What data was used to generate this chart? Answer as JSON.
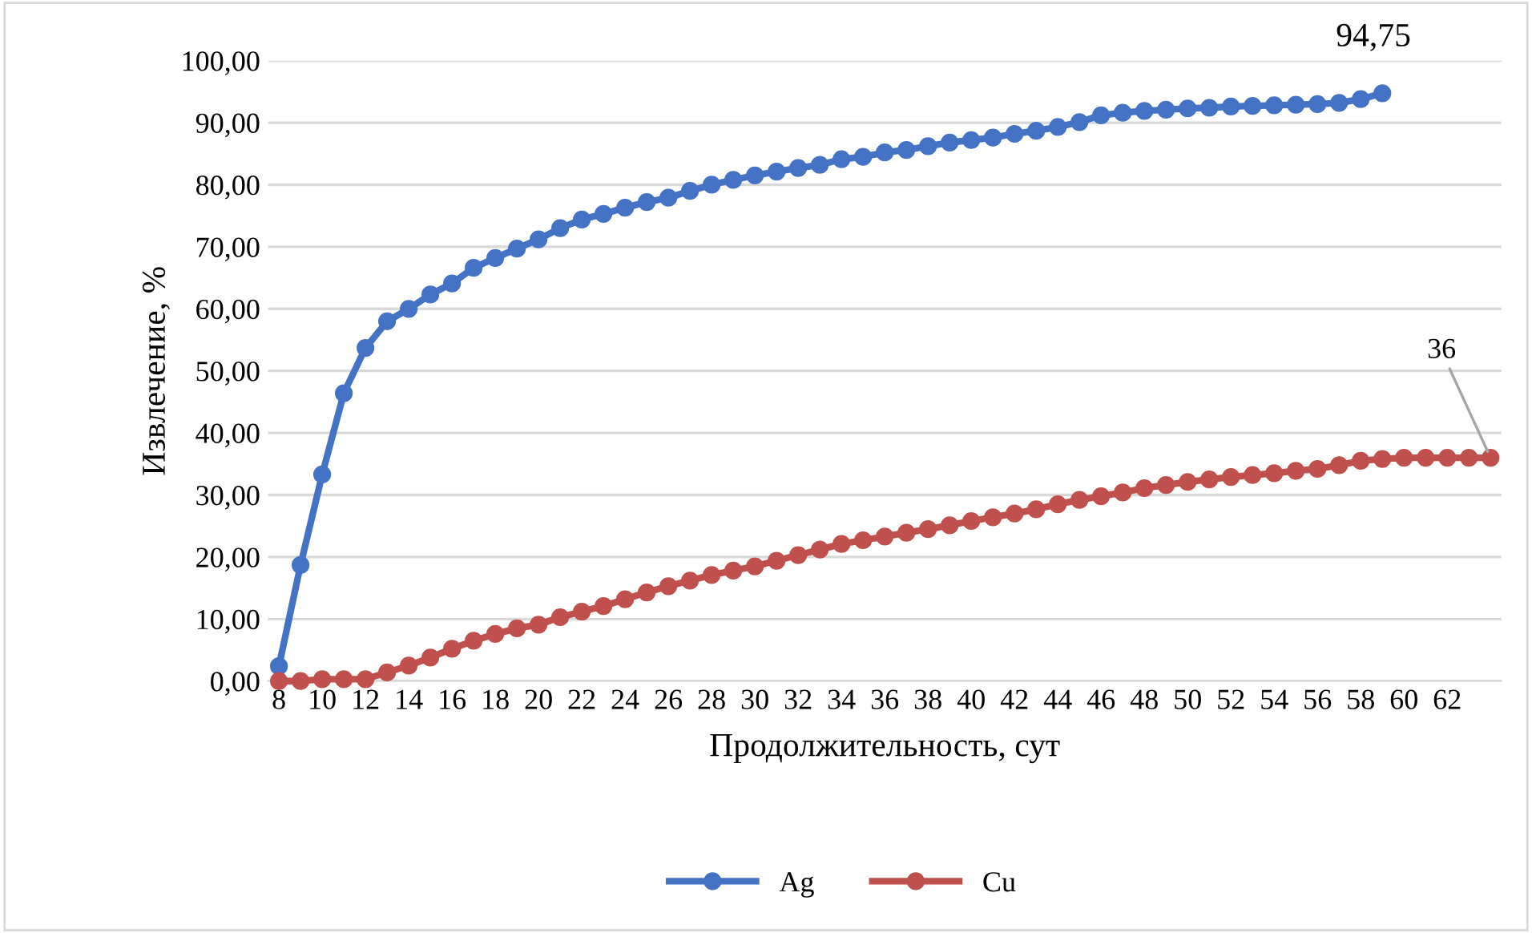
{
  "chart_data": {
    "type": "line",
    "xlabel": "Продолжительность, сут",
    "ylabel": "Извлечение, %",
    "categories": [
      "8",
      null,
      "10",
      null,
      "12",
      null,
      "14",
      null,
      "16",
      null,
      "18",
      null,
      "20",
      null,
      "22",
      null,
      "24",
      null,
      "26",
      null,
      "28",
      null,
      "30",
      null,
      "32",
      null,
      "34",
      null,
      "36",
      null,
      "38",
      null,
      "40",
      null,
      "42",
      null,
      "44",
      null,
      "46",
      null,
      "48",
      null,
      "50",
      null,
      "52",
      null,
      "54",
      null,
      "56",
      null,
      "58",
      null,
      "60",
      null,
      "62",
      null,
      null
    ],
    "series": [
      {
        "name": "Ag",
        "color": "#4472c4",
        "values": [
          2.4,
          18.7,
          33.3,
          46.4,
          53.7,
          58,
          60,
          62.3,
          64.1,
          66.6,
          68.2,
          69.7,
          71.2,
          73,
          74.4,
          75.3,
          76.3,
          77.2,
          77.9,
          79,
          80,
          80.8,
          81.5,
          82.1,
          82.7,
          83.2,
          84.1,
          84.5,
          85.2,
          85.6,
          86.2,
          86.8,
          87.2,
          87.6,
          88.2,
          88.7,
          89.3,
          90.1,
          91.2,
          91.6,
          91.9,
          92.1,
          92.3,
          92.4,
          92.6,
          92.7,
          92.8,
          92.9,
          93,
          93.2,
          93.8,
          94.75,
          null,
          null,
          null,
          null,
          null
        ],
        "value_labels": [
          null,
          null,
          null,
          null,
          null,
          null,
          null,
          null,
          null,
          null,
          null,
          null,
          null,
          null,
          null,
          null,
          null,
          null,
          null,
          null,
          null,
          null,
          null,
          null,
          null,
          null,
          null,
          null,
          null,
          null,
          null,
          null,
          null,
          null,
          null,
          null,
          null,
          null,
          null,
          null,
          null,
          null,
          null,
          null,
          null,
          null,
          null,
          null,
          null,
          null,
          null,
          "94,75",
          null,
          null,
          null,
          null,
          null
        ]
      },
      {
        "name": "Cu",
        "color": "#c0504d",
        "values": [
          0,
          0,
          0.3,
          0.3,
          0.3,
          1.4,
          2.5,
          3.8,
          5.2,
          6.5,
          7.6,
          8.5,
          9.1,
          10.3,
          11.2,
          12.1,
          13.2,
          14.3,
          15.3,
          16.2,
          17.1,
          17.8,
          18.5,
          19.4,
          20.3,
          21.2,
          22.1,
          22.7,
          23.3,
          23.9,
          24.5,
          25.1,
          25.8,
          26.4,
          27,
          27.7,
          28.5,
          29.2,
          29.8,
          30.4,
          31.1,
          31.6,
          32.1,
          32.5,
          32.9,
          33.2,
          33.5,
          33.9,
          34.2,
          34.8,
          35.5,
          35.8,
          36,
          36,
          36,
          36,
          36
        ],
        "value_labels": [
          null,
          null,
          null,
          null,
          null,
          null,
          null,
          null,
          null,
          null,
          null,
          null,
          null,
          null,
          null,
          null,
          null,
          null,
          null,
          null,
          null,
          null,
          null,
          null,
          null,
          null,
          null,
          null,
          null,
          null,
          null,
          null,
          null,
          null,
          null,
          null,
          null,
          null,
          null,
          null,
          null,
          null,
          null,
          null,
          null,
          null,
          null,
          null,
          null,
          null,
          null,
          null,
          null,
          null,
          null,
          null,
          "36"
        ]
      }
    ],
    "ylim": [
      0,
      100
    ],
    "yticks": [
      {
        "value": 0,
        "label": "0,00"
      },
      {
        "value": 10,
        "label": "10,00"
      },
      {
        "value": 20,
        "label": "20,00"
      },
      {
        "value": 30,
        "label": "30,00"
      },
      {
        "value": 40,
        "label": "40,00"
      },
      {
        "value": 50,
        "label": "50,00"
      },
      {
        "value": 60,
        "label": "60,00"
      },
      {
        "value": 70,
        "label": "70,00"
      },
      {
        "value": 80,
        "label": "80,00"
      },
      {
        "value": 90,
        "label": "90,00"
      },
      {
        "value": 100,
        "label": "100,00"
      }
    ],
    "grid": "y",
    "legend": "bottom",
    "marker": "circle",
    "line_style": "solid"
  }
}
